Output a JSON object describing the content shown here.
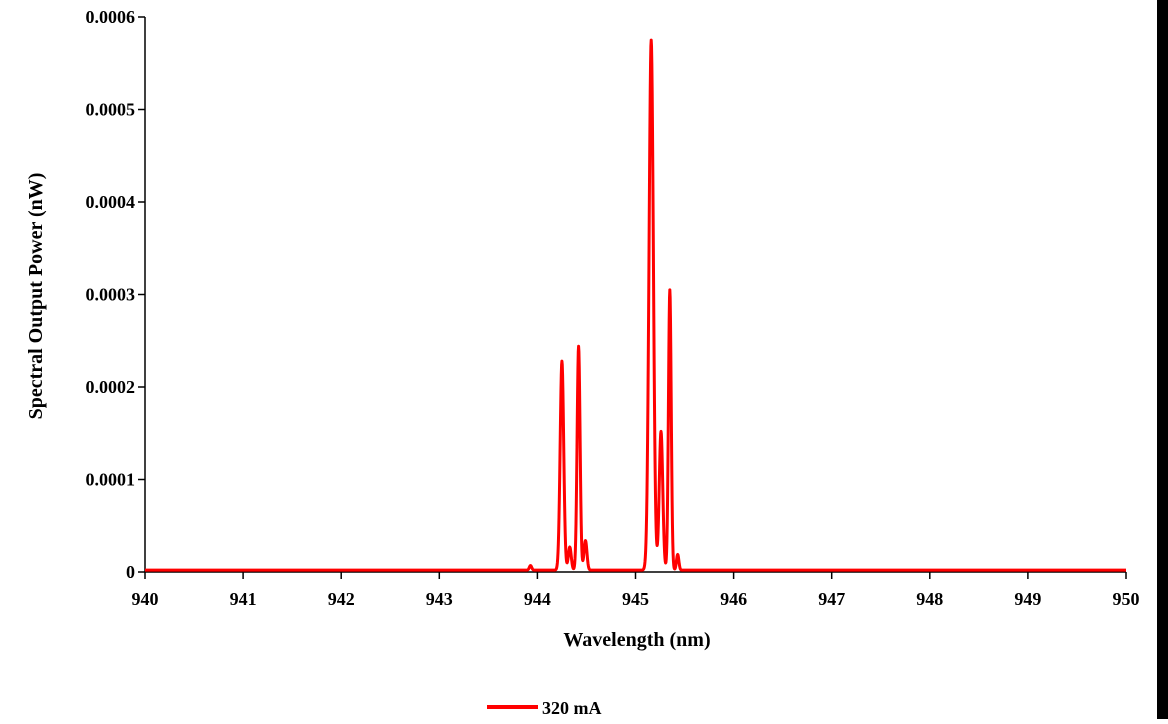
{
  "chart_data": {
    "type": "line",
    "title": "",
    "xlabel": "Wavelength (nm)",
    "ylabel": "Spectral Output Power (nW)",
    "xlim": [
      940,
      950
    ],
    "ylim": [
      0,
      0.0006
    ],
    "x_ticks": [
      "940",
      "941",
      "942",
      "943",
      "944",
      "945",
      "946",
      "947",
      "948",
      "949",
      "950"
    ],
    "y_ticks": [
      "0",
      "0.0001",
      "0.0002",
      "0.0003",
      "0.0004",
      "0.0005",
      "0.0006"
    ],
    "grid": false,
    "legend_position": "bottom-center",
    "baseline": 2e-06,
    "series": [
      {
        "name": "320 mA",
        "color": "#ff0000",
        "peaks": [
          {
            "x": 943.93,
            "y": 5e-06,
            "width": 0.012
          },
          {
            "x": 944.25,
            "y": 0.000226,
            "width": 0.018
          },
          {
            "x": 944.33,
            "y": 2.5e-05,
            "width": 0.015
          },
          {
            "x": 944.42,
            "y": 0.000242,
            "width": 0.015
          },
          {
            "x": 944.49,
            "y": 3.2e-05,
            "width": 0.015
          },
          {
            "x": 945.16,
            "y": 0.000573,
            "width": 0.022
          },
          {
            "x": 945.26,
            "y": 0.00015,
            "width": 0.018
          },
          {
            "x": 945.35,
            "y": 0.000303,
            "width": 0.014
          },
          {
            "x": 945.43,
            "y": 1.7e-05,
            "width": 0.012
          }
        ]
      }
    ]
  }
}
